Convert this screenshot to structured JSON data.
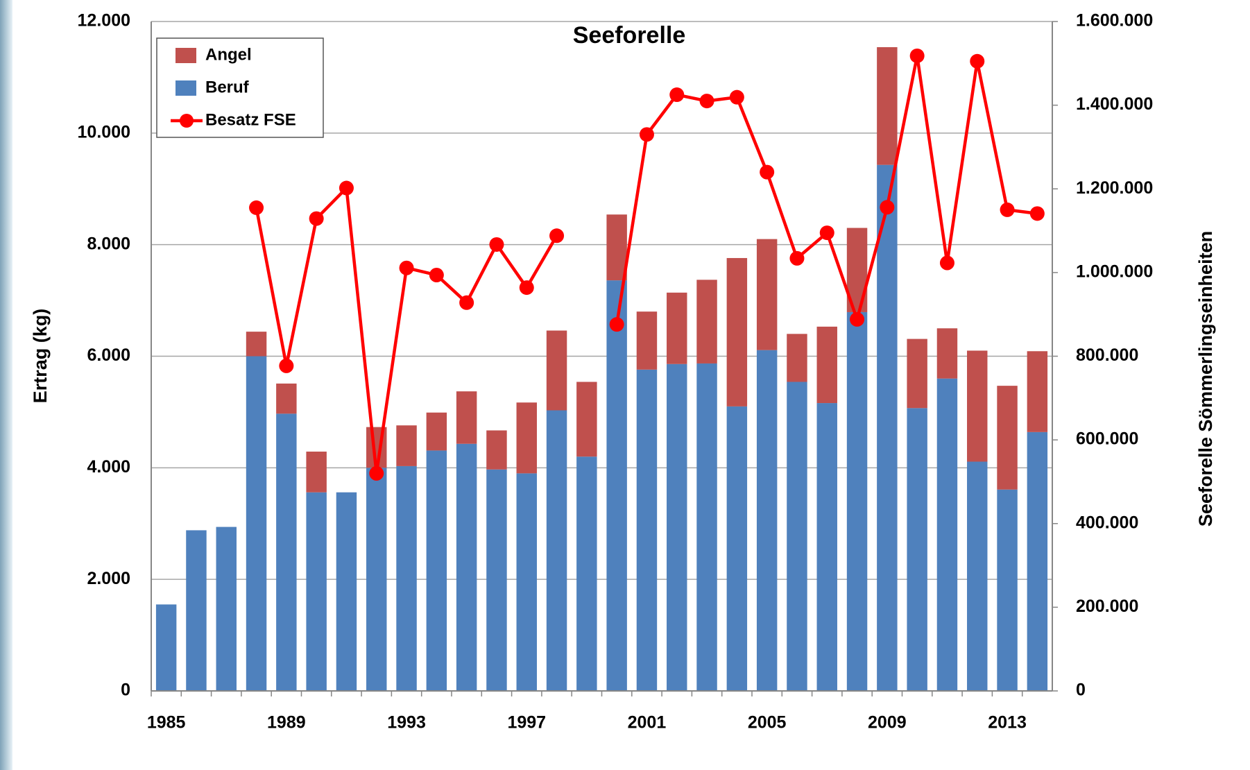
{
  "chart_data": {
    "type": "stacked-bar-line",
    "title": "Seeforelle",
    "y_label": "Ertrag (kg)",
    "y2_label": "Seeforelle Sömmerlingseinheiten",
    "categories": [
      "1985",
      null,
      null,
      null,
      "1989",
      null,
      null,
      null,
      "1993",
      null,
      null,
      null,
      "1997",
      null,
      null,
      null,
      "2001",
      null,
      null,
      null,
      "2005",
      null,
      null,
      null,
      "2009",
      null,
      null,
      null,
      "2013",
      null
    ],
    "series": [
      {
        "name": "Angel",
        "color": "#c0504d",
        "kind": "bar",
        "values": [
          0,
          0,
          0,
          440,
          540,
          730,
          0,
          730,
          730,
          680,
          940,
          700,
          1270,
          1430,
          1340,
          1180,
          1040,
          1280,
          1500,
          2660,
          1990,
          860,
          1370,
          1510,
          2110,
          1240,
          900,
          1990,
          1860,
          1450
        ]
      },
      {
        "name": "Beruf",
        "color": "#4f81bd",
        "kind": "bar",
        "values": [
          1550,
          2880,
          2940,
          6000,
          4970,
          3560,
          3560,
          4000,
          4030,
          4310,
          4430,
          3970,
          3900,
          5030,
          4200,
          7360,
          5760,
          5860,
          5870,
          5100,
          6110,
          5540,
          5160,
          6790,
          9430,
          5070,
          5600,
          4110,
          3610,
          4640
        ]
      },
      {
        "name": "Besatz FSE",
        "color": "#ff0000",
        "kind": "line",
        "axis": "y2",
        "values": [
          null,
          null,
          null,
          1155000,
          777000,
          1129000,
          1202000,
          520000,
          1011000,
          994000,
          928000,
          1067000,
          964000,
          1088000,
          null,
          876000,
          1330000,
          1425000,
          1410000,
          1419000,
          1240000,
          1034000,
          1095000,
          888000,
          1156000,
          1518000,
          1023000,
          1505000,
          1150000,
          1141000
        ]
      }
    ],
    "ylim": [
      0,
      12000
    ],
    "yticks": [
      0,
      {
        "value": 2000,
        "label": "2.000"
      },
      {
        "value": 4000,
        "label": "4.000"
      },
      {
        "value": 6000,
        "label": "6.000"
      },
      {
        "value": 8000,
        "label": "8.000"
      },
      {
        "value": 10000,
        "label": "10.000"
      },
      {
        "value": 12000,
        "label": "12.000"
      }
    ],
    "y2lim": [
      0,
      1600000
    ],
    "y2ticks": [
      0,
      {
        "value": 200000,
        "label": "200.000"
      },
      {
        "value": 400000,
        "label": "400.000"
      },
      {
        "value": 600000,
        "label": "600.000"
      },
      {
        "value": 800000,
        "label": "800.000"
      },
      {
        "value": 1000000,
        "label": "1.000.000"
      },
      {
        "value": 1200000,
        "label": "1.200.000"
      },
      {
        "value": 1400000,
        "label": "1.400.000"
      },
      {
        "value": 1600000,
        "label": "1.600.000"
      }
    ],
    "grid": true,
    "legend": "top-left"
  }
}
